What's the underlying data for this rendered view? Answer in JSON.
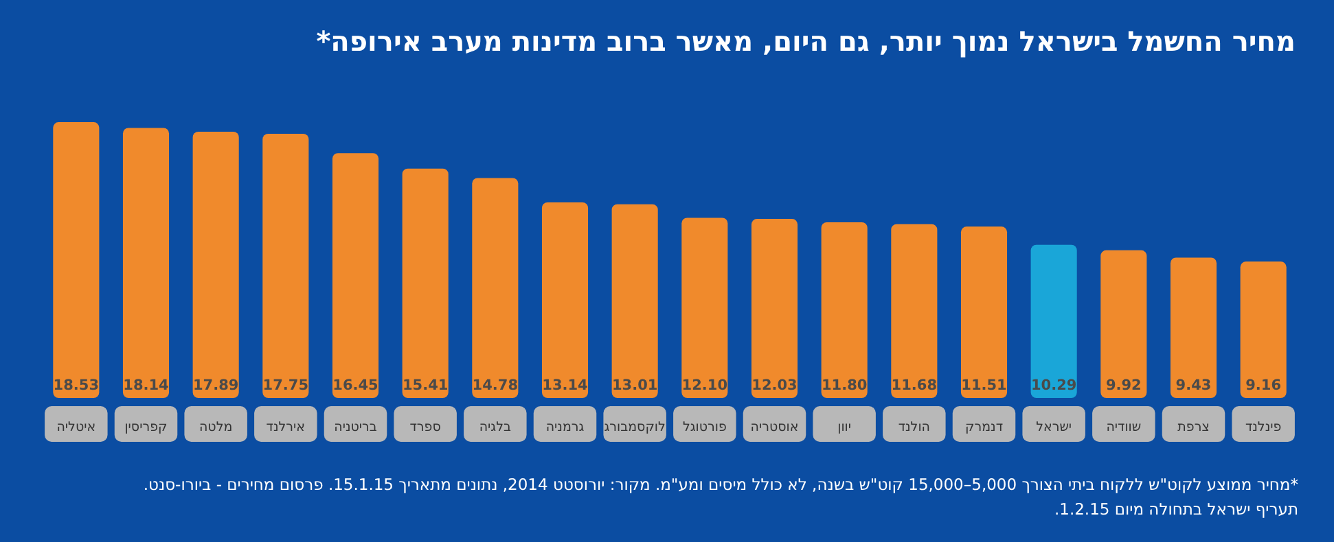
{
  "chart_data": {
    "type": "bar",
    "title": "מחיר החשמל בישראל נמוך יותר, גם היום, מאשר ברוב מדינות מערב אירופה*",
    "categories": [
      "איטליה",
      "קפריסין",
      "מלטה",
      "אירלנד",
      "בריטניה",
      "ספרד",
      "בלגיה",
      "גרמניה",
      "לוקסמבורג",
      "פורטוגל",
      "אוסטריה",
      "יוון",
      "הולנד",
      "דנמרק",
      "ישראל",
      "שוודיה",
      "צרפת",
      "פינלנד"
    ],
    "values": [
      18.53,
      18.14,
      17.89,
      17.75,
      16.45,
      15.41,
      14.78,
      13.14,
      13.01,
      12.1,
      12.03,
      11.8,
      11.68,
      11.51,
      10.29,
      9.92,
      9.43,
      9.16
    ],
    "value_labels": [
      "18.53",
      "18.14",
      "17.89",
      "17.75",
      "16.45",
      "15.41",
      "14.78",
      "13.14",
      "13.01",
      "12.10",
      "12.03",
      "11.80",
      "11.68",
      "11.51",
      "10.29",
      "9.92",
      "9.43",
      "9.16"
    ],
    "colors": [
      "#f08a2c",
      "#f08a2c",
      "#f08a2c",
      "#f08a2c",
      "#f08a2c",
      "#f08a2c",
      "#f08a2c",
      "#f08a2c",
      "#f08a2c",
      "#f08a2c",
      "#f08a2c",
      "#f08a2c",
      "#f08a2c",
      "#f08a2c",
      "#1aa6d8",
      "#f08a2c",
      "#f08a2c",
      "#f08a2c"
    ],
    "annotations": [
      "*מחיר ממוצע לקוט\"ש ללקוח ביתי הצורך 5,000–15,000 קוט\"ש בשנה, לא כולל מיסים ומע\"מ. מקור: יורוסטט 2014, נתונים מתאריך 15.1.15. פרסום מחירים - ביורו-סנט.",
      "תעריף ישראל בתחולה מיום 1.2.15."
    ]
  }
}
